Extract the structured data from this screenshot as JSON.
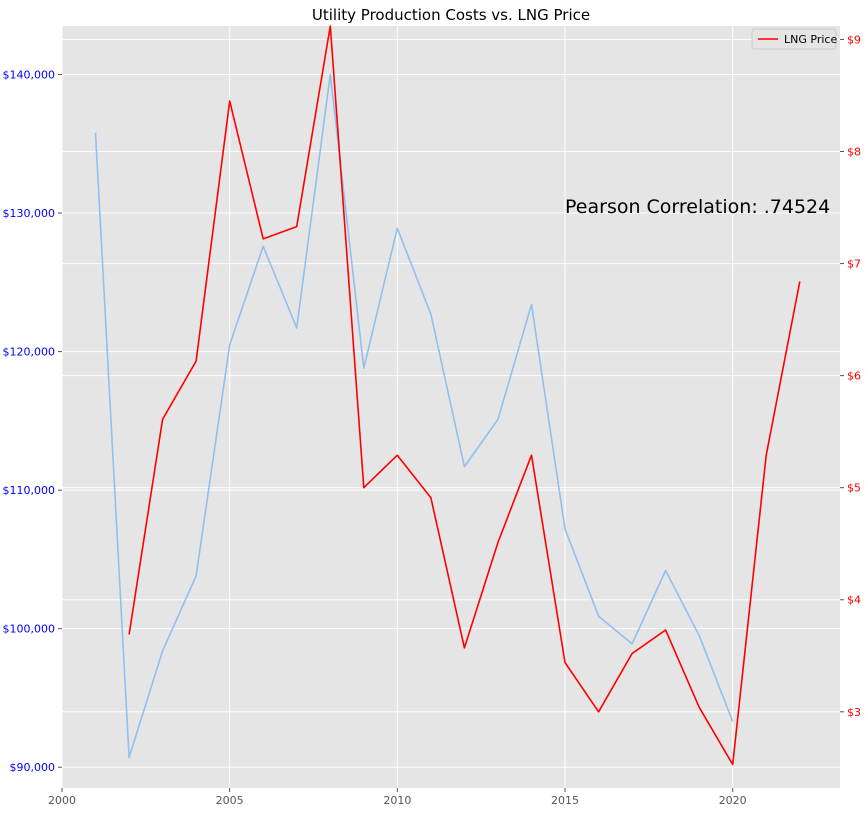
{
  "chart_data": {
    "type": "line",
    "title": "Utility Production Costs vs. LNG Price",
    "annotation": "Pearson Correlation: .74524",
    "background_color": "#e5e5e5",
    "grid": true,
    "legend": {
      "placement": "top-right",
      "entries": [
        {
          "label": "LNG Price",
          "color": "#ff0000"
        }
      ]
    },
    "x_axis": {
      "range": [
        2000,
        2023.2
      ],
      "ticks": [
        2000,
        2005,
        2010,
        2015,
        2020
      ],
      "tick_labels": [
        "2000",
        "2005",
        "2010",
        "2015",
        "2020"
      ]
    },
    "y_left": {
      "range": [
        88500,
        143500
      ],
      "ticks": [
        90000,
        100000,
        110000,
        120000,
        130000,
        140000
      ],
      "tick_labels": [
        "$90,000",
        "$100,000",
        "$110,000",
        "$120,000",
        "$130,000",
        "$140,000"
      ],
      "color": "#0000ff"
    },
    "y_right": {
      "range": [
        2.32,
        9.12
      ],
      "ticks": [
        3,
        4,
        5,
        6,
        7,
        8,
        9
      ],
      "tick_labels": [
        "$3",
        "$4",
        "$5",
        "$6",
        "$7",
        "$8",
        "$9"
      ],
      "color": "#ff0000"
    },
    "series": [
      {
        "axis": "left",
        "color": "#90c0f0",
        "x": [
          2001,
          2002,
          2003,
          2004,
          2005,
          2006,
          2007,
          2008,
          2009,
          2010,
          2011,
          2012,
          2013,
          2014,
          2015,
          2016,
          2017,
          2018,
          2019,
          2020
        ],
        "values": [
          135800,
          90700,
          98400,
          103800,
          120500,
          127600,
          121700,
          140000,
          118800,
          128900,
          122700,
          111700,
          115100,
          123400,
          107200,
          100900,
          98900,
          104200,
          99500,
          93300
        ]
      },
      {
        "name": "LNG Price",
        "axis": "right",
        "color": "#ff0000",
        "x": [
          2002,
          2003,
          2004,
          2005,
          2006,
          2007,
          2008,
          2009,
          2010,
          2011,
          2012,
          2013,
          2014,
          2015,
          2016,
          2017,
          2018,
          2019,
          2020,
          2021,
          2022
        ],
        "values": [
          3.69,
          5.61,
          6.13,
          8.45,
          7.22,
          7.33,
          9.12,
          5.0,
          5.29,
          4.91,
          3.57,
          4.51,
          5.29,
          3.44,
          3.0,
          3.52,
          3.73,
          3.04,
          2.53,
          5.29,
          6.84
        ]
      }
    ]
  }
}
